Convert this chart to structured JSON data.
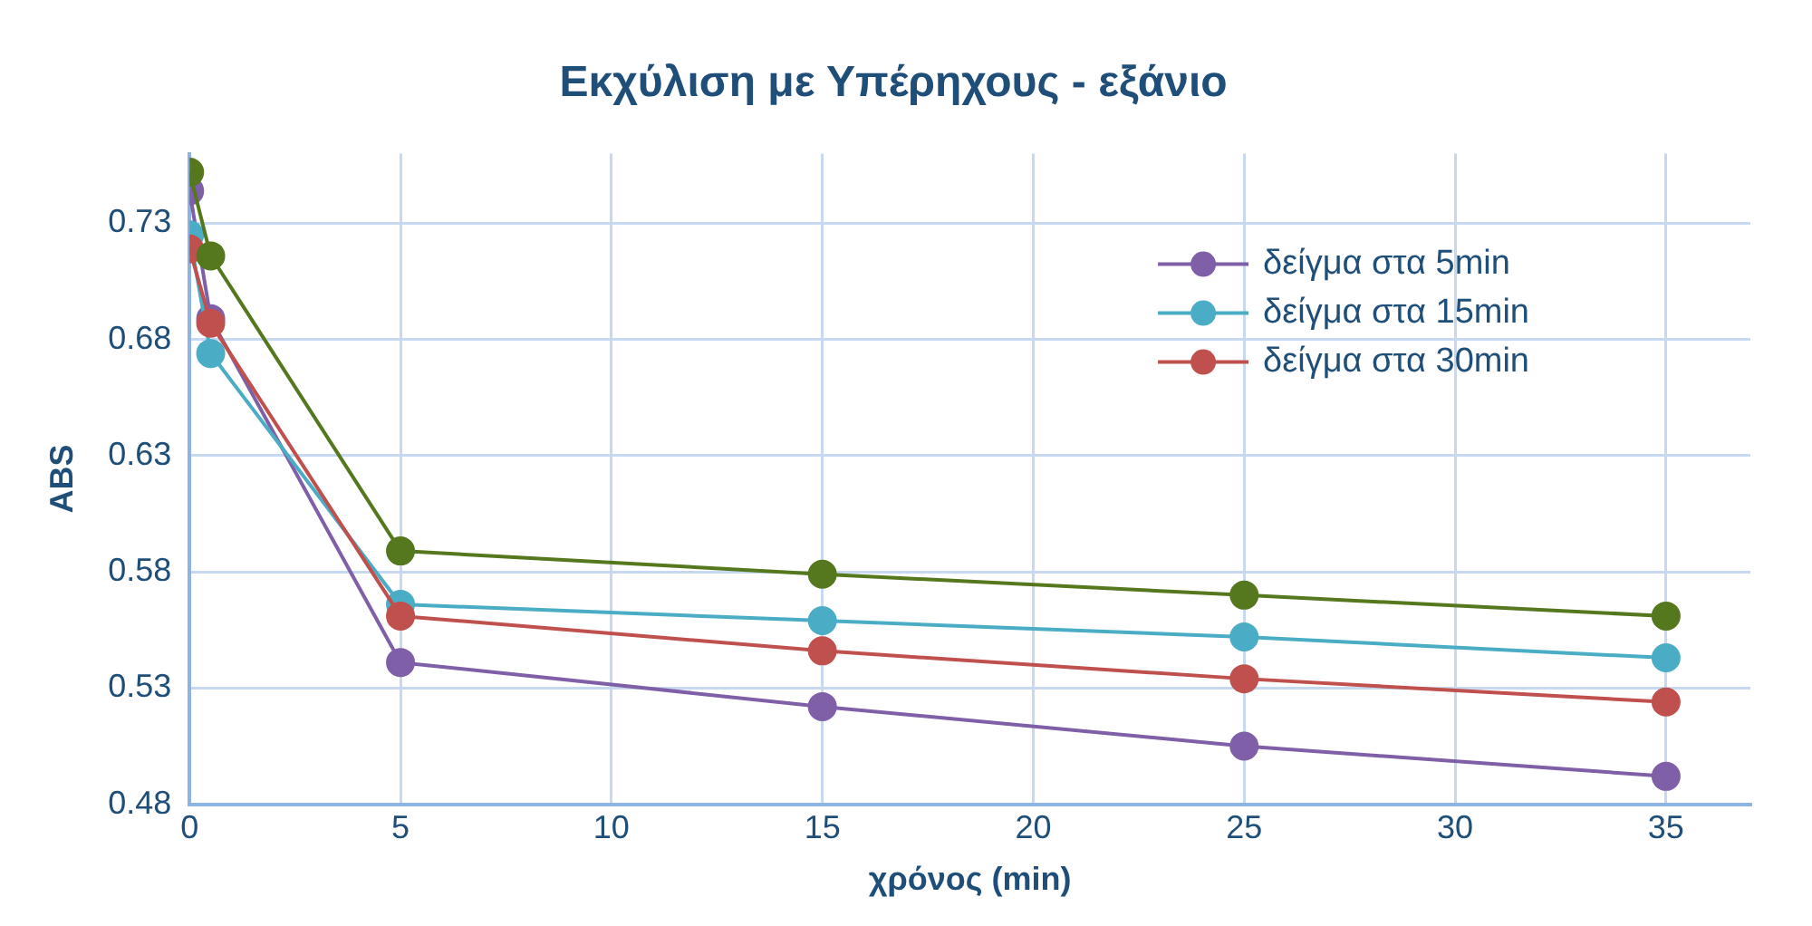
{
  "chart_data": {
    "type": "line",
    "title": "Εκχύλιση με Υπέρηχους - εξάνιο",
    "xlabel": "χρόνος (min)",
    "ylabel": "ABS",
    "x": [
      0,
      0.5,
      5,
      15,
      25,
      35
    ],
    "series": [
      {
        "name": "δείγμα στα 5min",
        "color": "#7f5fa8",
        "values": [
          0.744,
          0.689,
          0.541,
          0.522,
          0.505,
          0.492
        ]
      },
      {
        "name": "δείγμα στα 15min",
        "color": "#4bacc6",
        "values": [
          0.725,
          0.674,
          0.566,
          0.559,
          0.552,
          0.543
        ]
      },
      {
        "name": "δείγμα στα 30min",
        "color": "#c0504d",
        "values": [
          0.719,
          0.687,
          0.561,
          0.546,
          0.534,
          0.524
        ]
      },
      {
        "color": "#55781f",
        "values": [
          0.752,
          0.716,
          0.589,
          0.579,
          0.57,
          0.561
        ]
      }
    ],
    "xlim": [
      0,
      37
    ],
    "xticks": [
      0,
      5,
      10,
      15,
      20,
      25,
      30,
      35
    ],
    "ylim": [
      0.48,
      0.76
    ],
    "yticks": [
      0.48,
      0.53,
      0.58,
      0.63,
      0.68,
      0.73
    ],
    "grid": true,
    "legend": "top right",
    "marker": "circle",
    "line_style": "solid"
  }
}
